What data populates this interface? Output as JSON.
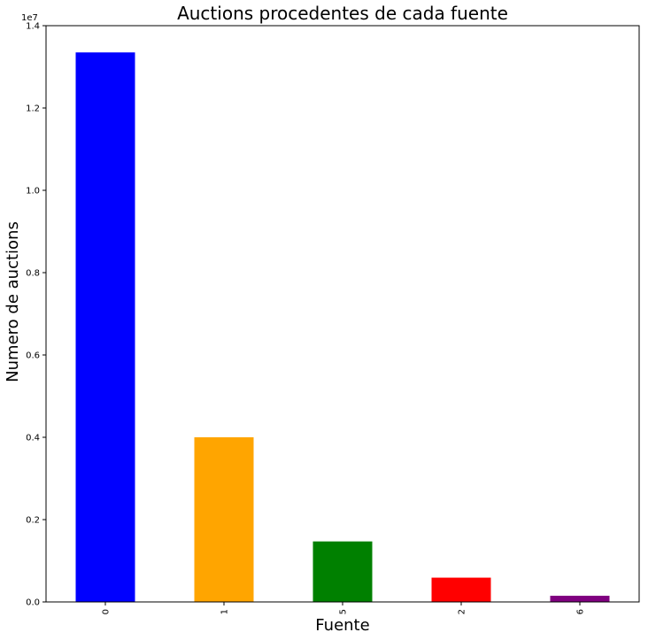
{
  "chart_data": {
    "type": "bar",
    "title": "Auctions procedentes de cada fuente",
    "xlabel": "Fuente",
    "ylabel": "Numero de auctions",
    "y_scale_label": "1e7",
    "categories": [
      "0",
      "1",
      "5",
      "2",
      "6"
    ],
    "values": [
      13350000,
      4000000,
      1470000,
      590000,
      150000
    ],
    "colors": [
      "#0000ff",
      "#ffa500",
      "#008000",
      "#ff0000",
      "#800080"
    ],
    "ylim": [
      0,
      14000000
    ],
    "yticks": [
      0,
      2000000,
      4000000,
      6000000,
      8000000,
      10000000,
      12000000,
      14000000
    ],
    "ytick_labels": [
      "0.0",
      "0.2",
      "0.4",
      "0.6",
      "0.8",
      "1.0",
      "1.2",
      "1.4"
    ],
    "grid": false,
    "legend": "none"
  }
}
